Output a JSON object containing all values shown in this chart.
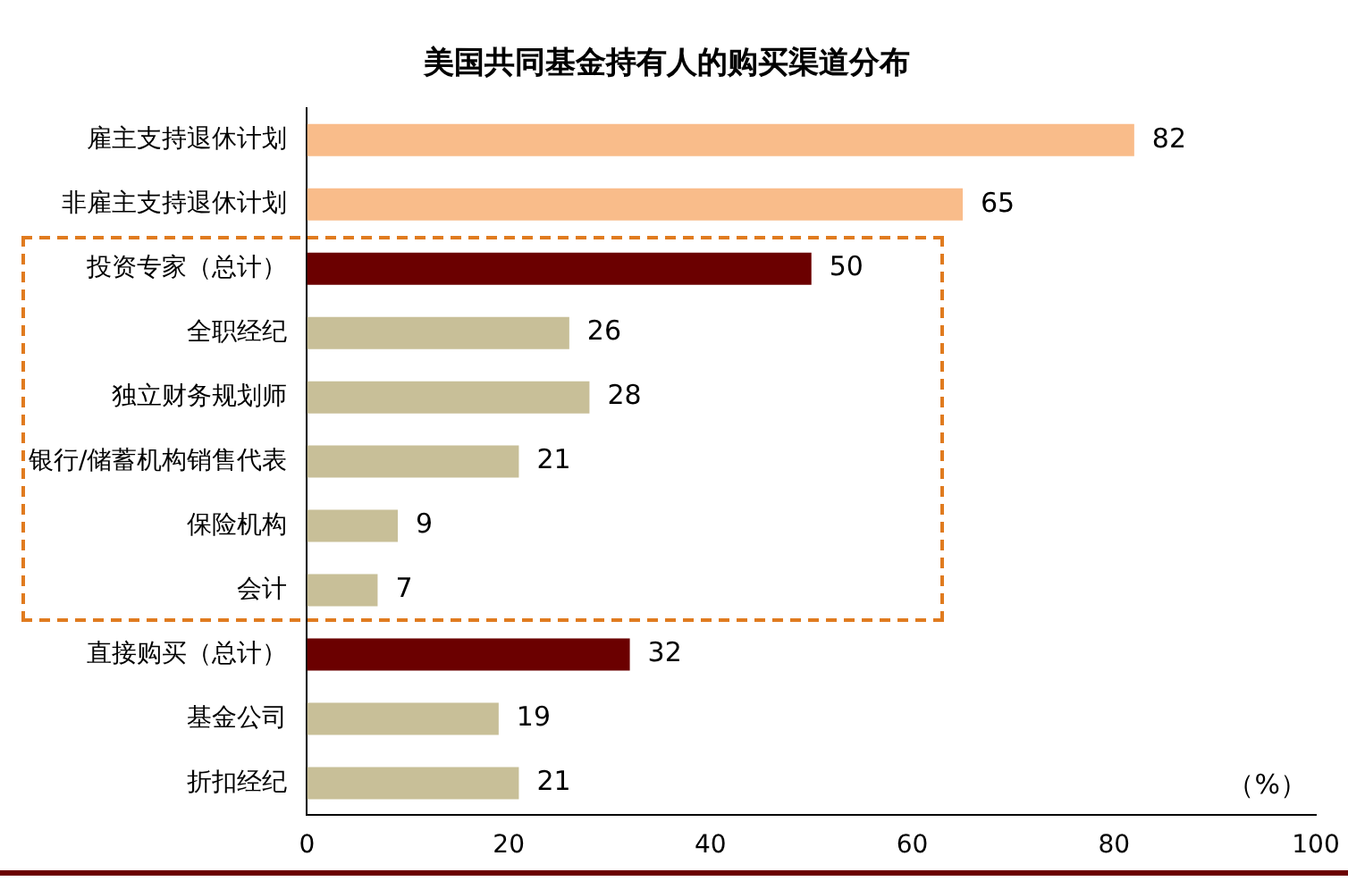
{
  "chart_data": {
    "type": "bar",
    "orientation": "horizontal",
    "title": "美国共同基金持有人的购买渠道分布",
    "categories": [
      "雇主支持退休计划",
      "非雇主支持退休计划",
      "投资专家（总计）",
      "全职经纪",
      "独立财务规划师",
      "银行/储蓄机构销售代表",
      "保险机构",
      "会计",
      "直接购买（总计）",
      "基金公司",
      "折扣经纪"
    ],
    "values": [
      82,
      65,
      50,
      26,
      28,
      21,
      9,
      7,
      32,
      19,
      21
    ],
    "colors": [
      "#f9bc8a",
      "#f9bc8a",
      "#6b0000",
      "#c8bf98",
      "#c8bf98",
      "#c8bf98",
      "#c8bf98",
      "#c8bf98",
      "#6b0000",
      "#c8bf98",
      "#c8bf98"
    ],
    "xlim": [
      0,
      100
    ],
    "xticks": [
      0,
      20,
      40,
      60,
      80,
      100
    ],
    "data_labels": true,
    "grid": false,
    "legend": false,
    "annotations": [
      "（%）"
    ]
  }
}
